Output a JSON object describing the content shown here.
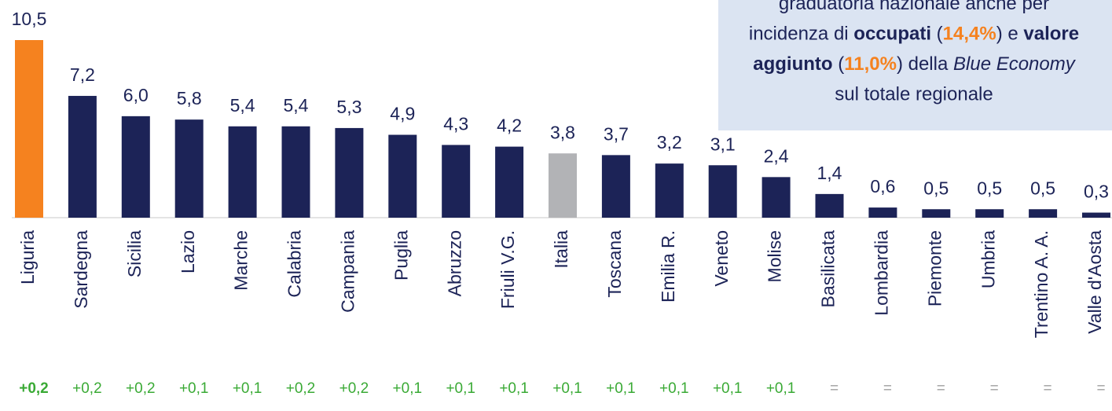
{
  "chart_data": {
    "type": "bar",
    "categories": [
      "Liguria",
      "Sardegna",
      "Sicilia",
      "Lazio",
      "Marche",
      "Calabria",
      "Campania",
      "Puglia",
      "Abruzzo",
      "Friuli V.G.",
      "Italia",
      "Toscana",
      "Emilia R.",
      "Veneto",
      "Molise",
      "Basilicata",
      "Lombardia",
      "Piemonte",
      "Umbria",
      "Trentino A. A.",
      "Valle d'Aosta"
    ],
    "values": [
      10.5,
      7.2,
      6.0,
      5.8,
      5.4,
      5.4,
      5.3,
      4.9,
      4.3,
      4.2,
      3.8,
      3.7,
      3.2,
      3.1,
      2.4,
      1.4,
      0.6,
      0.5,
      0.5,
      0.5,
      0.3
    ],
    "value_labels": [
      "10,5",
      "7,2",
      "6,0",
      "5,8",
      "5,4",
      "5,4",
      "5,3",
      "4,9",
      "4,3",
      "4,2",
      "3,8",
      "3,7",
      "3,2",
      "3,1",
      "2,4",
      "1,4",
      "0,6",
      "0,5",
      "0,5",
      "0,5",
      "0,3"
    ],
    "colors": [
      "#f5821f",
      "#1c2357",
      "#1c2357",
      "#1c2357",
      "#1c2357",
      "#1c2357",
      "#1c2357",
      "#1c2357",
      "#1c2357",
      "#1c2357",
      "#b2b3b6",
      "#1c2357",
      "#1c2357",
      "#1c2357",
      "#1c2357",
      "#1c2357",
      "#1c2357",
      "#1c2357",
      "#1c2357",
      "#1c2357",
      "#1c2357"
    ],
    "changes": [
      "+0,2",
      "+0,2",
      "+0,2",
      "+0,1",
      "+0,1",
      "+0,2",
      "+0,2",
      "+0,1",
      "+0,1",
      "+0,1",
      "+0,1",
      "+0,1",
      "+0,1",
      "+0,1",
      "+0,1",
      "=",
      "=",
      "=",
      "=",
      "=",
      "="
    ],
    "annotation": [
      [
        {
          "text": "graduatoria nazionale anche per",
          "style": "normal"
        }
      ],
      [
        {
          "text": "incidenza di ",
          "style": "normal"
        },
        {
          "text": "occupati",
          "style": "bold"
        },
        {
          "text": " (",
          "style": "normal"
        },
        {
          "text": "14,4%",
          "style": "orange"
        },
        {
          "text": ") e ",
          "style": "normal"
        },
        {
          "text": "valore",
          "style": "bold"
        }
      ],
      [
        {
          "text": "aggiunto",
          "style": "bold"
        },
        {
          "text": " (",
          "style": "normal"
        },
        {
          "text": "11,0%",
          "style": "orange"
        },
        {
          "text": ") della ",
          "style": "normal"
        },
        {
          "text": "Blue Economy",
          "style": "italic"
        }
      ],
      [
        {
          "text": "sul totale regionale",
          "style": "normal"
        }
      ]
    ]
  }
}
